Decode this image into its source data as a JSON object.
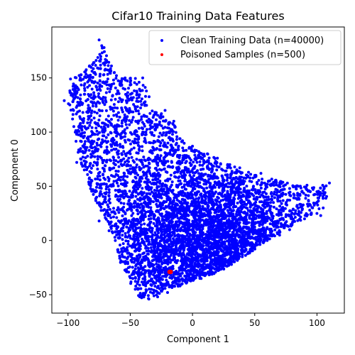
{
  "chart_data": {
    "type": "scatter",
    "title": "Cifar10 Training Data Features",
    "xlabel": "Component 1",
    "ylabel": "Component 0",
    "xlim": [
      -113,
      122
    ],
    "ylim": [
      -67,
      197
    ],
    "xticks": [
      -100,
      -50,
      0,
      50,
      100
    ],
    "yticks": [
      -50,
      0,
      50,
      100,
      150
    ],
    "grid": false,
    "legend_position": "top-right",
    "series": [
      {
        "name": "Clean Training Data (n=40000)",
        "color": "#0000ff",
        "count": 40000,
        "region_polygon": [
          [
            -100,
            128
          ],
          [
            -97,
            149
          ],
          [
            -75,
            170
          ],
          [
            -73,
            185
          ],
          [
            -60,
            150
          ],
          [
            -45,
            150
          ],
          [
            -40,
            148
          ],
          [
            -36,
            137
          ],
          [
            -30,
            120
          ],
          [
            -15,
            108
          ],
          [
            -8,
            91
          ],
          [
            0,
            85
          ],
          [
            15,
            80
          ],
          [
            30,
            70
          ],
          [
            45,
            62
          ],
          [
            60,
            58
          ],
          [
            80,
            52
          ],
          [
            95,
            50
          ],
          [
            110,
            53
          ],
          [
            108,
            40
          ],
          [
            102,
            28
          ],
          [
            90,
            20
          ],
          [
            75,
            10
          ],
          [
            60,
            0
          ],
          [
            48,
            -10
          ],
          [
            35,
            -20
          ],
          [
            20,
            -30
          ],
          [
            5,
            -36
          ],
          [
            -10,
            -42
          ],
          [
            -25,
            -48
          ],
          [
            -35,
            -54
          ],
          [
            -42,
            -54
          ],
          [
            -48,
            -45
          ],
          [
            -52,
            -35
          ],
          [
            -58,
            -20
          ],
          [
            -62,
            0
          ],
          [
            -68,
            15
          ],
          [
            -75,
            30
          ],
          [
            -85,
            55
          ],
          [
            -92,
            80
          ],
          [
            -95,
            100
          ],
          [
            -100,
            128
          ]
        ],
        "points": [
          [
            -103,
            129
          ],
          [
            -98,
            149
          ],
          [
            -87,
            143
          ],
          [
            -75,
            185
          ],
          [
            -71,
            178
          ],
          [
            -70,
            167
          ],
          [
            -70,
            158
          ],
          [
            -68,
            149
          ],
          [
            -60,
            136
          ],
          [
            -50,
            146
          ],
          [
            -40,
            150
          ],
          [
            -37,
            138
          ],
          [
            -22,
            120
          ],
          [
            -80,
            124
          ],
          [
            -84,
            118
          ],
          [
            -90,
            108
          ],
          [
            -88,
            77
          ],
          [
            -93,
            72
          ],
          [
            -83,
            57
          ],
          [
            -77,
            40
          ],
          [
            -75,
            18
          ],
          [
            -67,
            9
          ],
          [
            -62,
            0
          ],
          [
            -57,
            -10
          ],
          [
            -52,
            -20
          ],
          [
            -48,
            -35
          ],
          [
            -46,
            -45
          ],
          [
            -42,
            -52
          ],
          [
            -35,
            -54
          ],
          [
            -28,
            -52
          ],
          [
            -20,
            -48
          ],
          [
            -10,
            -42
          ],
          [
            0,
            -36
          ],
          [
            10,
            -30
          ],
          [
            20,
            -25
          ],
          [
            30,
            -20
          ],
          [
            40,
            -15
          ],
          [
            50,
            -6
          ],
          [
            60,
            0
          ],
          [
            70,
            5
          ],
          [
            78,
            10
          ],
          [
            90,
            20
          ],
          [
            100,
            25
          ],
          [
            103,
            23
          ],
          [
            105,
            30
          ],
          [
            110,
            53
          ],
          [
            100,
            45
          ],
          [
            92,
            51
          ],
          [
            85,
            50
          ],
          [
            78,
            48
          ],
          [
            70,
            45
          ],
          [
            62,
            55
          ],
          [
            55,
            62
          ],
          [
            50,
            60
          ],
          [
            45,
            63
          ],
          [
            38,
            67
          ],
          [
            30,
            70
          ],
          [
            20,
            76
          ],
          [
            12,
            80
          ],
          [
            5,
            82
          ],
          [
            0,
            87
          ],
          [
            -8,
            92
          ],
          [
            -15,
            110
          ],
          [
            -20,
            104
          ],
          [
            -25,
            117
          ],
          [
            -30,
            106
          ],
          [
            -35,
            112
          ],
          [
            -40,
            100
          ],
          [
            -45,
            90
          ],
          [
            -50,
            80
          ],
          [
            -55,
            70
          ],
          [
            -60,
            60
          ],
          [
            -65,
            50
          ],
          [
            -45,
            54
          ],
          [
            -30,
            40
          ],
          [
            -15,
            30
          ],
          [
            0,
            15
          ],
          [
            15,
            10
          ],
          [
            30,
            5
          ],
          [
            45,
            3
          ],
          [
            60,
            12
          ],
          [
            75,
            22
          ],
          [
            85,
            30
          ],
          [
            40,
            30
          ],
          [
            20,
            40
          ],
          [
            5,
            45
          ],
          [
            -10,
            55
          ],
          [
            -25,
            65
          ],
          [
            -40,
            70
          ],
          [
            -55,
            40
          ],
          [
            -40,
            20
          ],
          [
            -25,
            0
          ],
          [
            -10,
            -10
          ],
          [
            5,
            -15
          ],
          [
            20,
            -10
          ],
          [
            35,
            0
          ],
          [
            50,
            20
          ],
          [
            -35,
            -30
          ],
          [
            -20,
            -20
          ],
          [
            -5,
            -25
          ],
          [
            10,
            0
          ],
          [
            25,
            15
          ],
          [
            45,
            40
          ],
          [
            65,
            35
          ]
        ]
      },
      {
        "name": "Poisoned Samples (n=500)",
        "color": "#ff0000",
        "count": 500,
        "center": [
          -18,
          -29
        ],
        "spread": [
          1.2,
          0.9
        ]
      }
    ]
  }
}
